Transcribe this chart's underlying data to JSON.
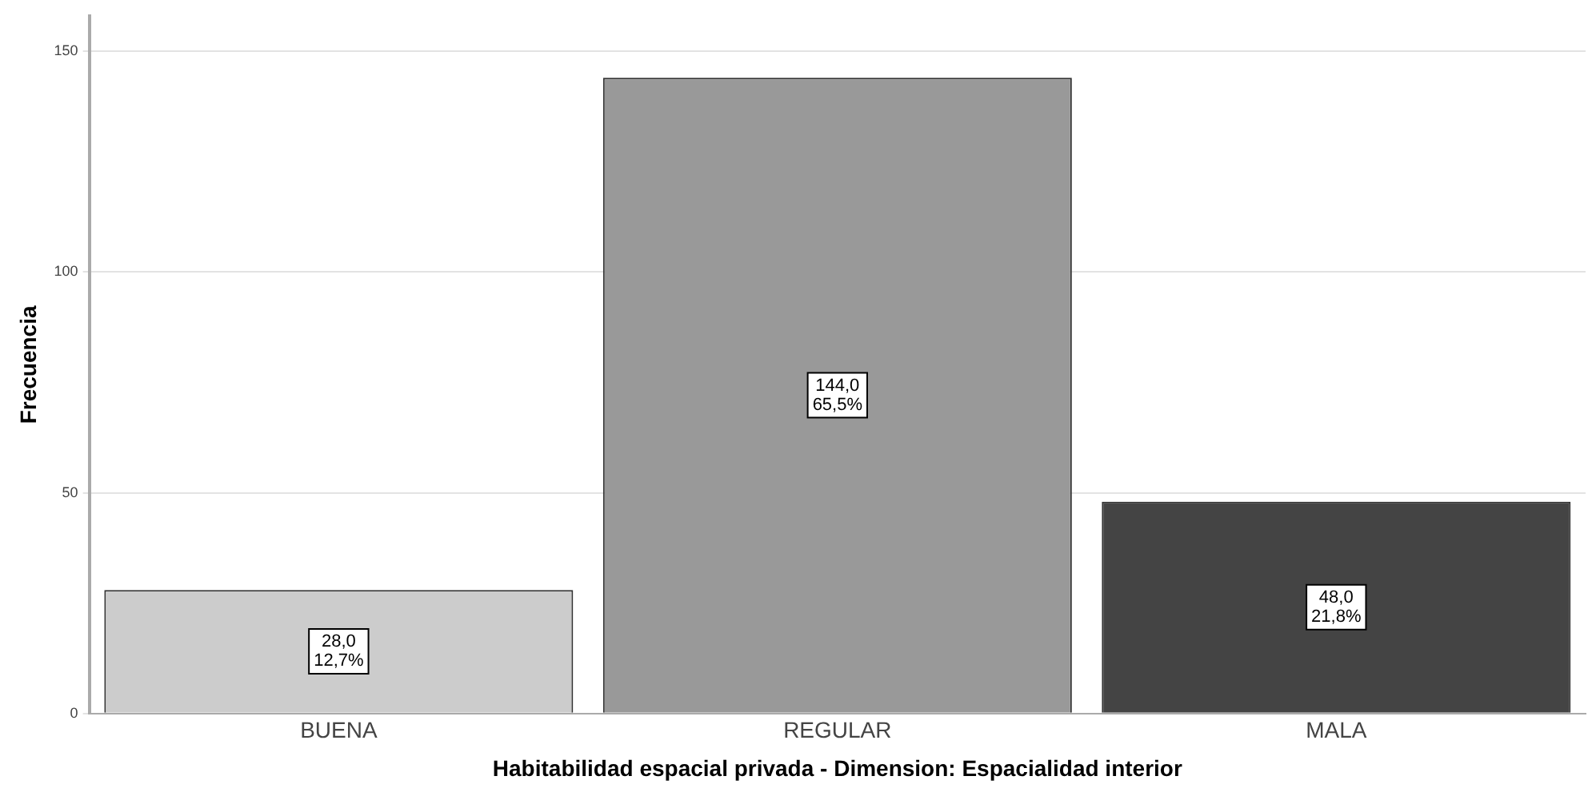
{
  "chart_data": {
    "type": "bar",
    "xlabel": "Habitabilidad espacial privada - Dimension: Espacialidad interior",
    "ylabel": "Frecuencia",
    "categories": [
      "BUENA",
      "REGULAR",
      "MALA"
    ],
    "values": [
      28,
      144,
      48
    ],
    "colors": [
      "#cccccc",
      "#999999",
      "#444444"
    ],
    "value_labels": [
      "28,0\n12,7%",
      "144,0\n65,5%",
      "48,0\n21,8%"
    ],
    "ylim": [
      0,
      158
    ],
    "yticks": [
      0,
      50,
      100,
      150
    ],
    "grid": "y",
    "legend": false
  }
}
